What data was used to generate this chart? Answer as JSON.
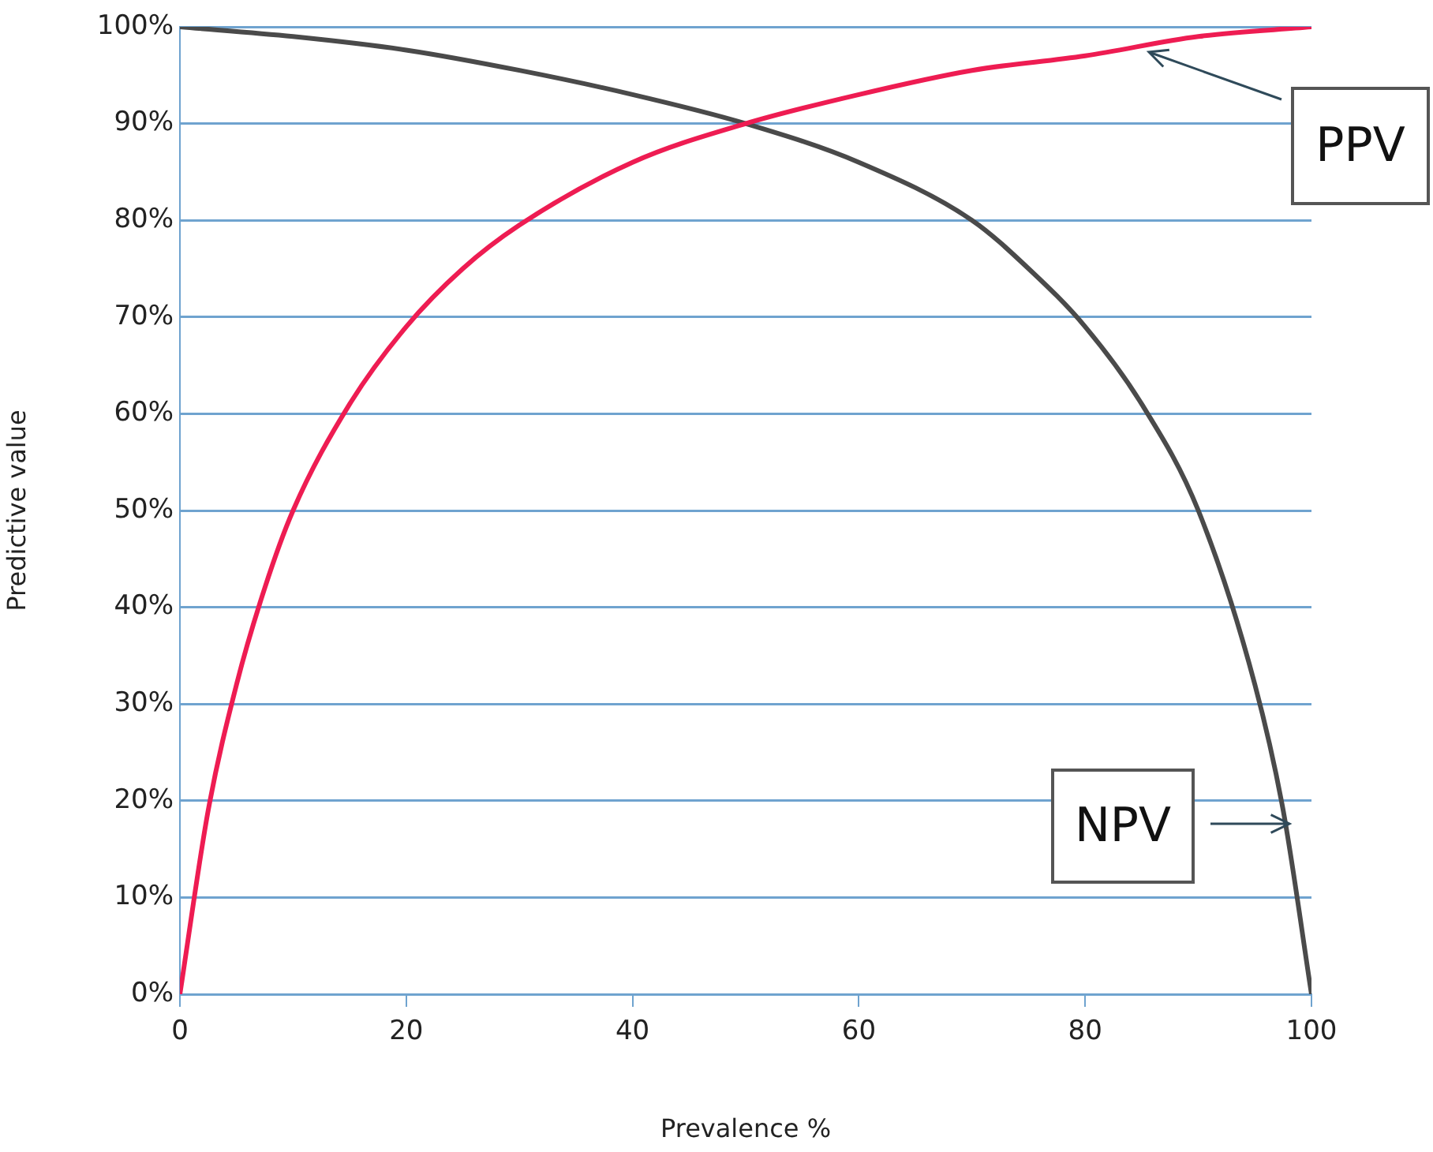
{
  "chart_data": {
    "type": "line",
    "xlabel": "Prevalence %",
    "ylabel": "Predictive value",
    "xlim": [
      0,
      100
    ],
    "xticks": [
      0,
      20,
      40,
      60,
      80,
      100
    ],
    "ylim": [
      0,
      100
    ],
    "yticks": [
      {
        "value": 0,
        "label": "0%"
      },
      {
        "value": 10,
        "label": "10%"
      },
      {
        "value": 20,
        "label": "20%"
      },
      {
        "value": 30,
        "label": "30%"
      },
      {
        "value": 40,
        "label": "40%"
      },
      {
        "value": 50,
        "label": "50%"
      },
      {
        "value": 60,
        "label": "60%"
      },
      {
        "value": 70,
        "label": "70%"
      },
      {
        "value": 80,
        "label": "80%"
      },
      {
        "value": 90,
        "label": "90%"
      },
      {
        "value": 100,
        "label": "100%"
      }
    ],
    "grid": "y",
    "legend": false,
    "marker": "none",
    "line_style": "solid",
    "series": [
      {
        "name": "PPV",
        "color": "#ee1c52",
        "x": [
          0,
          2.5,
          5,
          7.5,
          10,
          15,
          20,
          25,
          30,
          40,
          50,
          60,
          70,
          80,
          90,
          100
        ],
        "values": [
          0,
          19,
          32,
          42,
          50,
          61,
          69,
          75,
          79.5,
          86,
          90,
          93,
          95.5,
          97,
          99,
          100
        ]
      },
      {
        "name": "NPV",
        "color": "#4a4a4a",
        "x": [
          0,
          10,
          20,
          30,
          40,
          50,
          60,
          70,
          75,
          80,
          85,
          90,
          95,
          97.5,
          100
        ],
        "values": [
          100,
          99,
          97.6,
          95.5,
          93,
          90,
          86,
          80,
          75,
          69,
          61,
          50,
          32,
          19,
          0
        ]
      }
    ]
  }
}
